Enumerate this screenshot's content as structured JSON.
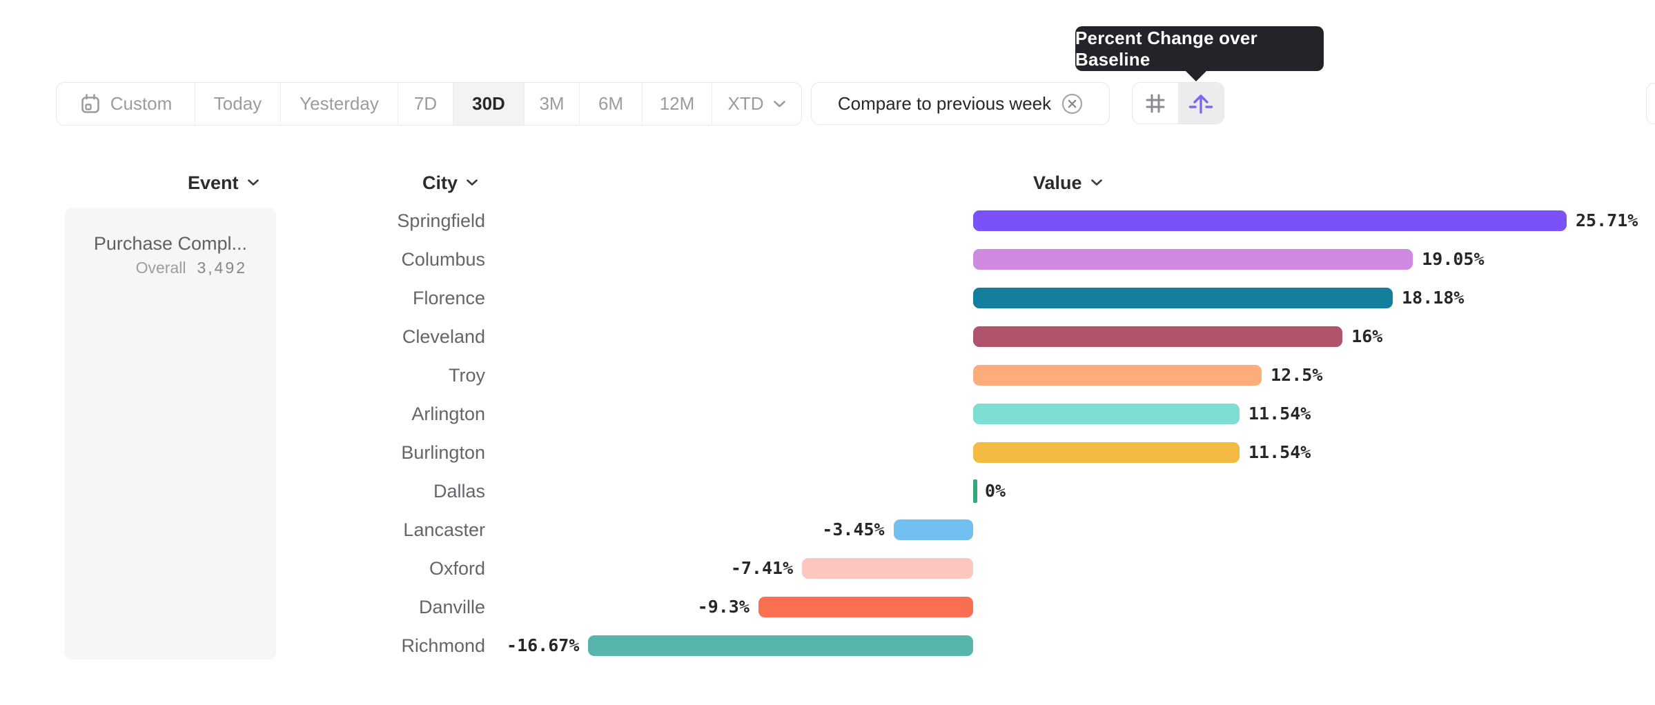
{
  "tooltip": {
    "text": "Percent Change over Baseline"
  },
  "toolbar": {
    "date_ranges": [
      {
        "label": "Custom",
        "selected": false,
        "has_icon": "calendar-icon"
      },
      {
        "label": "Today",
        "selected": false
      },
      {
        "label": "Yesterday",
        "selected": false
      },
      {
        "label": "7D",
        "selected": false
      },
      {
        "label": "30D",
        "selected": true
      },
      {
        "label": "3M",
        "selected": false
      },
      {
        "label": "6M",
        "selected": false
      },
      {
        "label": "12M",
        "selected": false
      },
      {
        "label": "XTD",
        "selected": false,
        "has_dropdown": true
      }
    ],
    "compare_label": "Compare to previous week",
    "value_mode_toggle": {
      "options": [
        {
          "icon": "hash-icon",
          "name": "absolute-numbers",
          "selected": false
        },
        {
          "icon": "baseline-arrow-icon",
          "name": "percent-change-over-baseline",
          "selected": true
        }
      ]
    },
    "colors": {
      "accent_purple": "#7B68F2",
      "selected_bg": "#F3F3F4",
      "tooltip_bg": "#232329"
    }
  },
  "columns": {
    "event": "Event",
    "city": "City",
    "value": "Value"
  },
  "event_card": {
    "name": "Purchase Compl...",
    "overall_label": "Overall",
    "overall_value": "3,492"
  },
  "chart_data": {
    "type": "bar",
    "orientation": "horizontal",
    "title": "",
    "xlabel": "Value",
    "ylabel": "City",
    "categories": [
      "Springfield",
      "Columbus",
      "Florence",
      "Cleveland",
      "Troy",
      "Arlington",
      "Burlington",
      "Dallas",
      "Lancaster",
      "Oxford",
      "Danville",
      "Richmond"
    ],
    "values": [
      25.71,
      19.05,
      18.18,
      16,
      12.5,
      11.54,
      11.54,
      0,
      -3.45,
      -7.41,
      -9.3,
      -16.67
    ],
    "labels": [
      "25.71%",
      "19.05%",
      "18.18%",
      "16%",
      "12.5%",
      "11.54%",
      "11.54%",
      "0%",
      "-3.45%",
      "-7.41%",
      "-9.3%",
      "-16.67%"
    ],
    "colors": [
      "#7B52F9",
      "#CE8ADF",
      "#147E9D",
      "#B0546B",
      "#FCAD79",
      "#7FDED4",
      "#F3BB42",
      "#35A877",
      "#72BFF2",
      "#FBC7BF",
      "#FA6E52",
      "#58B5AB"
    ],
    "unit": "%",
    "baseline": 0,
    "xlim": [
      -16.67,
      25.71
    ],
    "grid": false,
    "value_label_position": "outside-end"
  }
}
